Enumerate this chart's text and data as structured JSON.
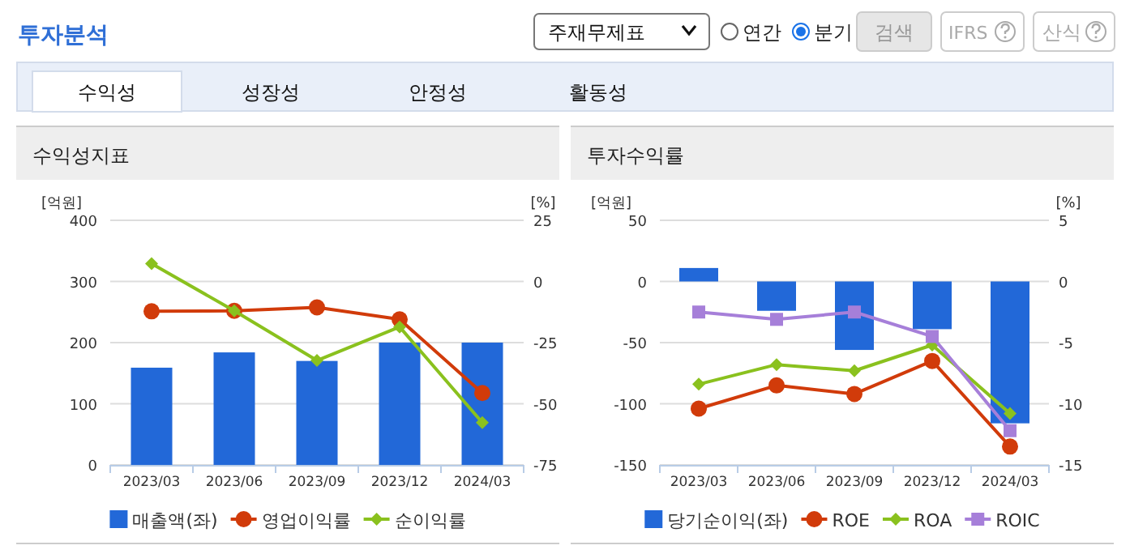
{
  "chart_data": [
    {
      "type": "other",
      "title": "투자분석",
      "annotations": [
        "주재무제표",
        "연간",
        "분기",
        "검색",
        "IFRS",
        "산식",
        "수익성",
        "성장성",
        "안정성",
        "활동성"
      ]
    },
    {
      "type": "bar",
      "title": "수익성지표",
      "ylabel": "[억원]",
      "y2label": "[%]",
      "categories": [
        "2023/03",
        "2023/06",
        "2023/09",
        "2023/12",
        "2024/03"
      ],
      "ylim": [
        0,
        400
      ],
      "yticks": [
        0,
        100,
        200,
        300,
        400
      ],
      "y2lim": [
        -75,
        25
      ],
      "y2ticks": [
        -75,
        -50,
        -25,
        0,
        25
      ],
      "grid": "y",
      "legend": "bottom",
      "series": [
        {
          "name": "매출액(좌)",
          "type": "bar",
          "color": "#2268d8",
          "values": [
            159,
            184,
            170,
            200,
            200
          ]
        },
        {
          "name": "영업이익률",
          "type": "line",
          "axis": "y2",
          "marker": "circle",
          "color": "#d13b0a",
          "values": [
            -12.2,
            -12,
            -10.6,
            -15.5,
            -45.6
          ]
        },
        {
          "name": "순이익률",
          "type": "line",
          "axis": "y2",
          "marker": "diamond",
          "color": "#8ac11e",
          "values": [
            7.3,
            -12,
            -32.3,
            -18.6,
            -57.7
          ]
        }
      ]
    },
    {
      "type": "bar",
      "title": "투자수익률",
      "ylabel": "[억원]",
      "y2label": "[%]",
      "categories": [
        "2023/03",
        "2023/06",
        "2023/09",
        "2023/12",
        "2024/03"
      ],
      "ylim": [
        -150,
        50
      ],
      "yticks": [
        -150,
        -100,
        -50,
        0,
        50
      ],
      "y2lim": [
        -15,
        5
      ],
      "y2ticks": [
        -15,
        -10,
        -5,
        0,
        5
      ],
      "grid": "y",
      "legend": "bottom",
      "series": [
        {
          "name": "당기순이익(좌)",
          "type": "bar",
          "color": "#2268d8",
          "values": [
            11,
            -24,
            -56,
            -39,
            -116
          ]
        },
        {
          "name": "ROE",
          "type": "line",
          "axis": "y2",
          "marker": "circle",
          "color": "#d13b0a",
          "values": [
            -10.4,
            -8.5,
            -9.2,
            -6.5,
            -13.5
          ]
        },
        {
          "name": "ROA",
          "type": "line",
          "axis": "y2",
          "marker": "diamond",
          "color": "#8ac11e",
          "values": [
            -8.4,
            -6.8,
            -7.3,
            -5.2,
            -10.8
          ]
        },
        {
          "name": "ROIC",
          "type": "line",
          "axis": "y2",
          "marker": "square",
          "color": "#a67fd9",
          "values": [
            -2.5,
            -3.1,
            -2.5,
            -4.5,
            -12.2
          ]
        }
      ]
    }
  ]
}
